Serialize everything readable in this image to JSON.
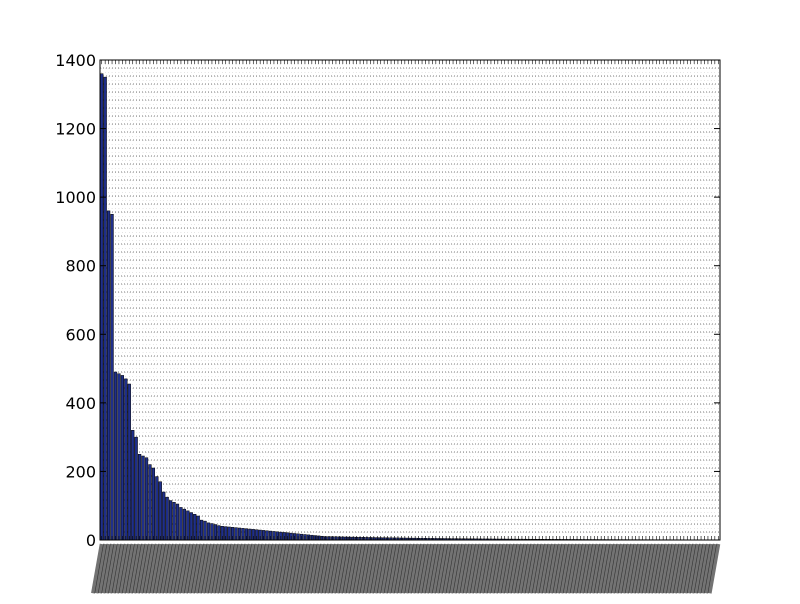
{
  "chart_data": {
    "type": "bar",
    "title": "",
    "xlabel": "",
    "ylabel": "",
    "ylim": [
      0,
      1400
    ],
    "yticks": [
      0,
      200,
      400,
      600,
      800,
      1000,
      1200,
      1400
    ],
    "ytick_labels": [
      "0",
      "200",
      "400",
      "600",
      "800",
      "1000",
      "1200",
      "1400"
    ],
    "grid": true,
    "legend": "none",
    "bar_count": 180,
    "head_values": [
      1360,
      1350,
      960,
      950,
      490,
      485,
      480,
      470,
      455,
      320,
      300,
      250,
      245,
      240,
      220,
      210,
      185,
      170,
      140,
      125,
      115,
      110,
      105,
      95,
      90,
      85,
      80,
      75,
      70,
      58,
      55,
      50,
      48,
      45,
      42,
      40,
      39,
      38,
      37,
      36,
      35,
      34,
      33,
      32,
      31,
      30,
      29,
      28,
      27,
      26,
      25,
      24,
      23,
      22,
      21,
      20,
      19,
      18,
      17,
      16,
      15,
      14,
      13,
      12,
      11,
      10
    ],
    "tail_pattern": "remaining values decay from 10 toward 0",
    "colors": {
      "bar_fill": "#1f2f8a",
      "bar_edge": "#000000",
      "grid": "#000000",
      "axes": "#000000"
    }
  }
}
